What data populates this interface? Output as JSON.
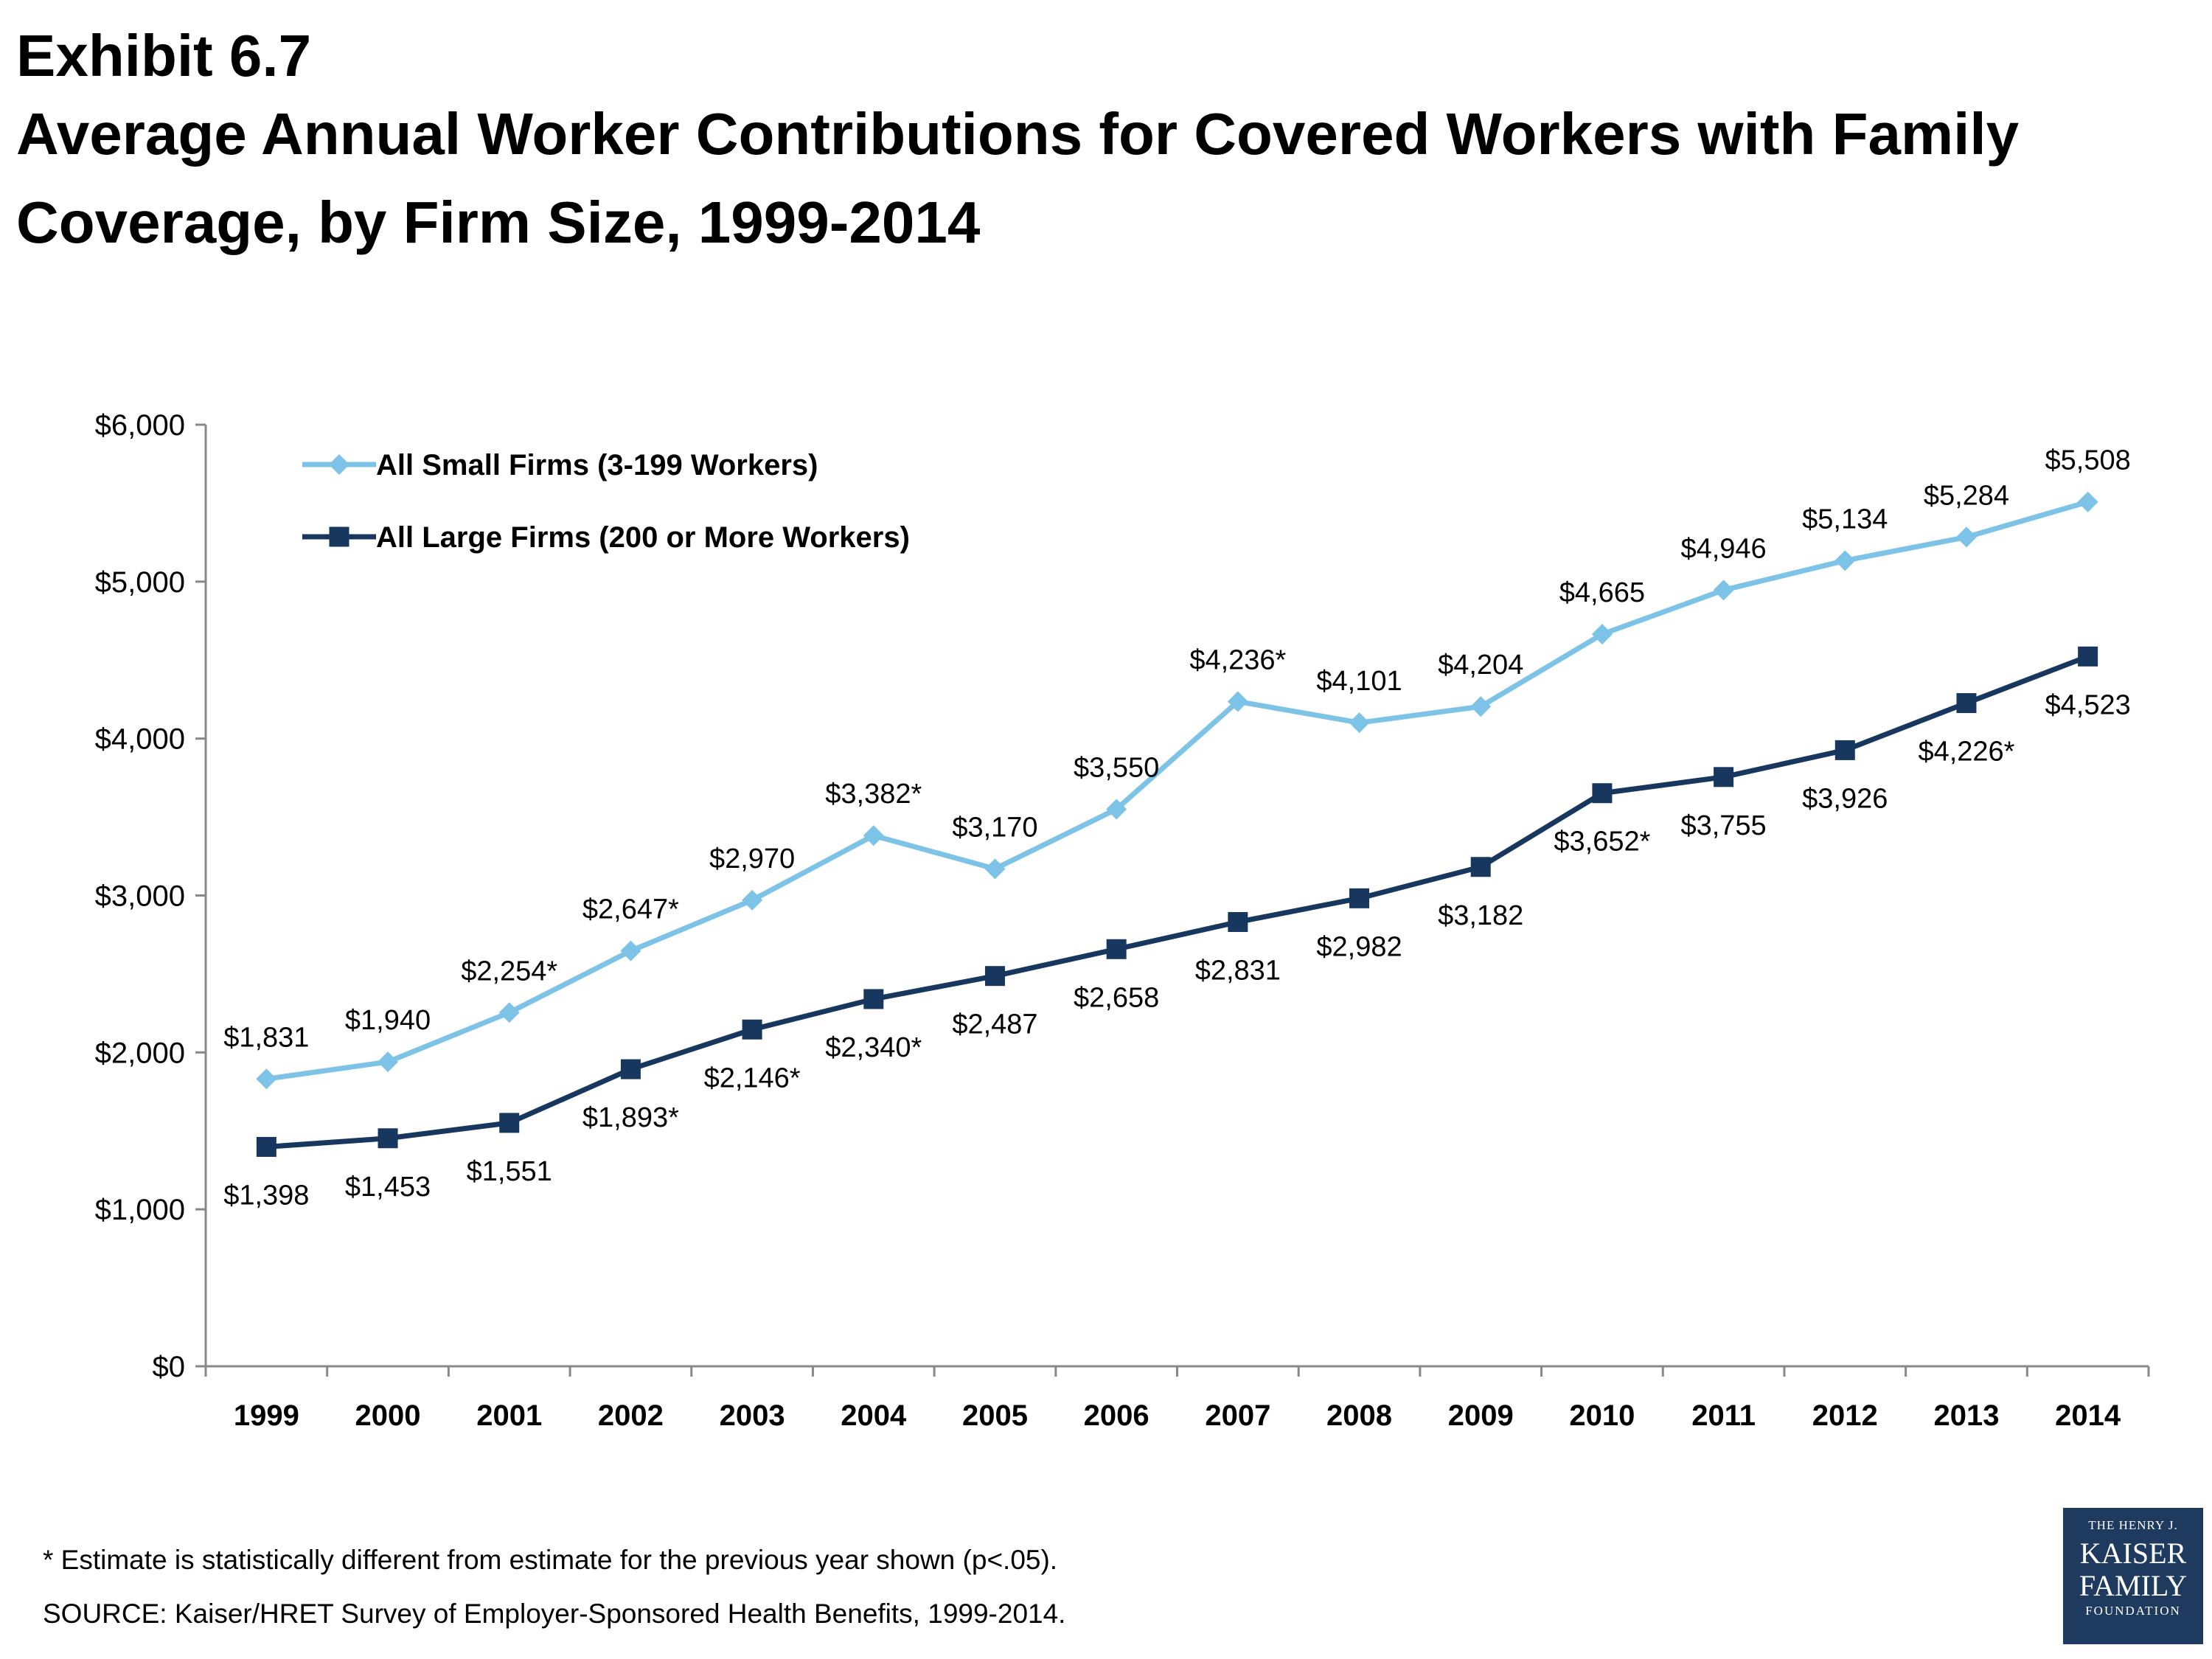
{
  "exhibit": "Exhibit 6.7",
  "title": "Average Annual Worker Contributions for Covered Workers with Family Coverage, by Firm Size, 1999-2014",
  "footnote": "* Estimate is statistically different from estimate for the previous year shown (p<.05).",
  "source": "SOURCE:  Kaiser/HRET Survey of Employer-Sponsored Health Benefits, 1999-2014.",
  "logo": {
    "line1": "THE HENRY J.",
    "line2": "KAISER",
    "line3": "FAMILY",
    "line4": "FOUNDATION"
  },
  "chart_data": {
    "type": "line",
    "x": [
      "1999",
      "2000",
      "2001",
      "2002",
      "2003",
      "2004",
      "2005",
      "2006",
      "2007",
      "2008",
      "2009",
      "2010",
      "2011",
      "2012",
      "2013",
      "2014"
    ],
    "ylim": [
      0,
      6000
    ],
    "yticks": [
      0,
      1000,
      2000,
      3000,
      4000,
      5000,
      6000
    ],
    "ytick_labels": [
      "$0",
      "$1,000",
      "$2,000",
      "$3,000",
      "$4,000",
      "$5,000",
      "$6,000"
    ],
    "grid": false,
    "legend_position": "top-left",
    "series": [
      {
        "name": "All Small Firms (3-199 Workers)",
        "color": "#7dc3e8",
        "marker": "diamond",
        "values": [
          1831,
          1940,
          2254,
          2647,
          2970,
          3382,
          3170,
          3550,
          4236,
          4101,
          4204,
          4665,
          4946,
          5134,
          5284,
          5508
        ],
        "labels": [
          "$1,831",
          "$1,940",
          "$2,254*",
          "$2,647*",
          "$2,970",
          "$3,382*",
          "$3,170",
          "$3,550",
          "$4,236*",
          "$4,101",
          "$4,204",
          "$4,665",
          "$4,946",
          "$5,134",
          "$5,284",
          "$5,508"
        ]
      },
      {
        "name": "All Large Firms (200 or More Workers)",
        "color": "#17375e",
        "marker": "square",
        "values": [
          1398,
          1453,
          1551,
          1893,
          2146,
          2340,
          2487,
          2658,
          2831,
          2982,
          3182,
          3652,
          3755,
          3926,
          4226,
          4523
        ],
        "labels": [
          "$1,398",
          "$1,453",
          "$1,551",
          "$1,893*",
          "$2,146*",
          "$2,340*",
          "$2,487",
          "$2,658",
          "$2,831",
          "$2,982",
          "$3,182",
          "$3,652*",
          "$3,755",
          "$3,926",
          "$4,226*",
          "$4,523"
        ]
      }
    ]
  }
}
